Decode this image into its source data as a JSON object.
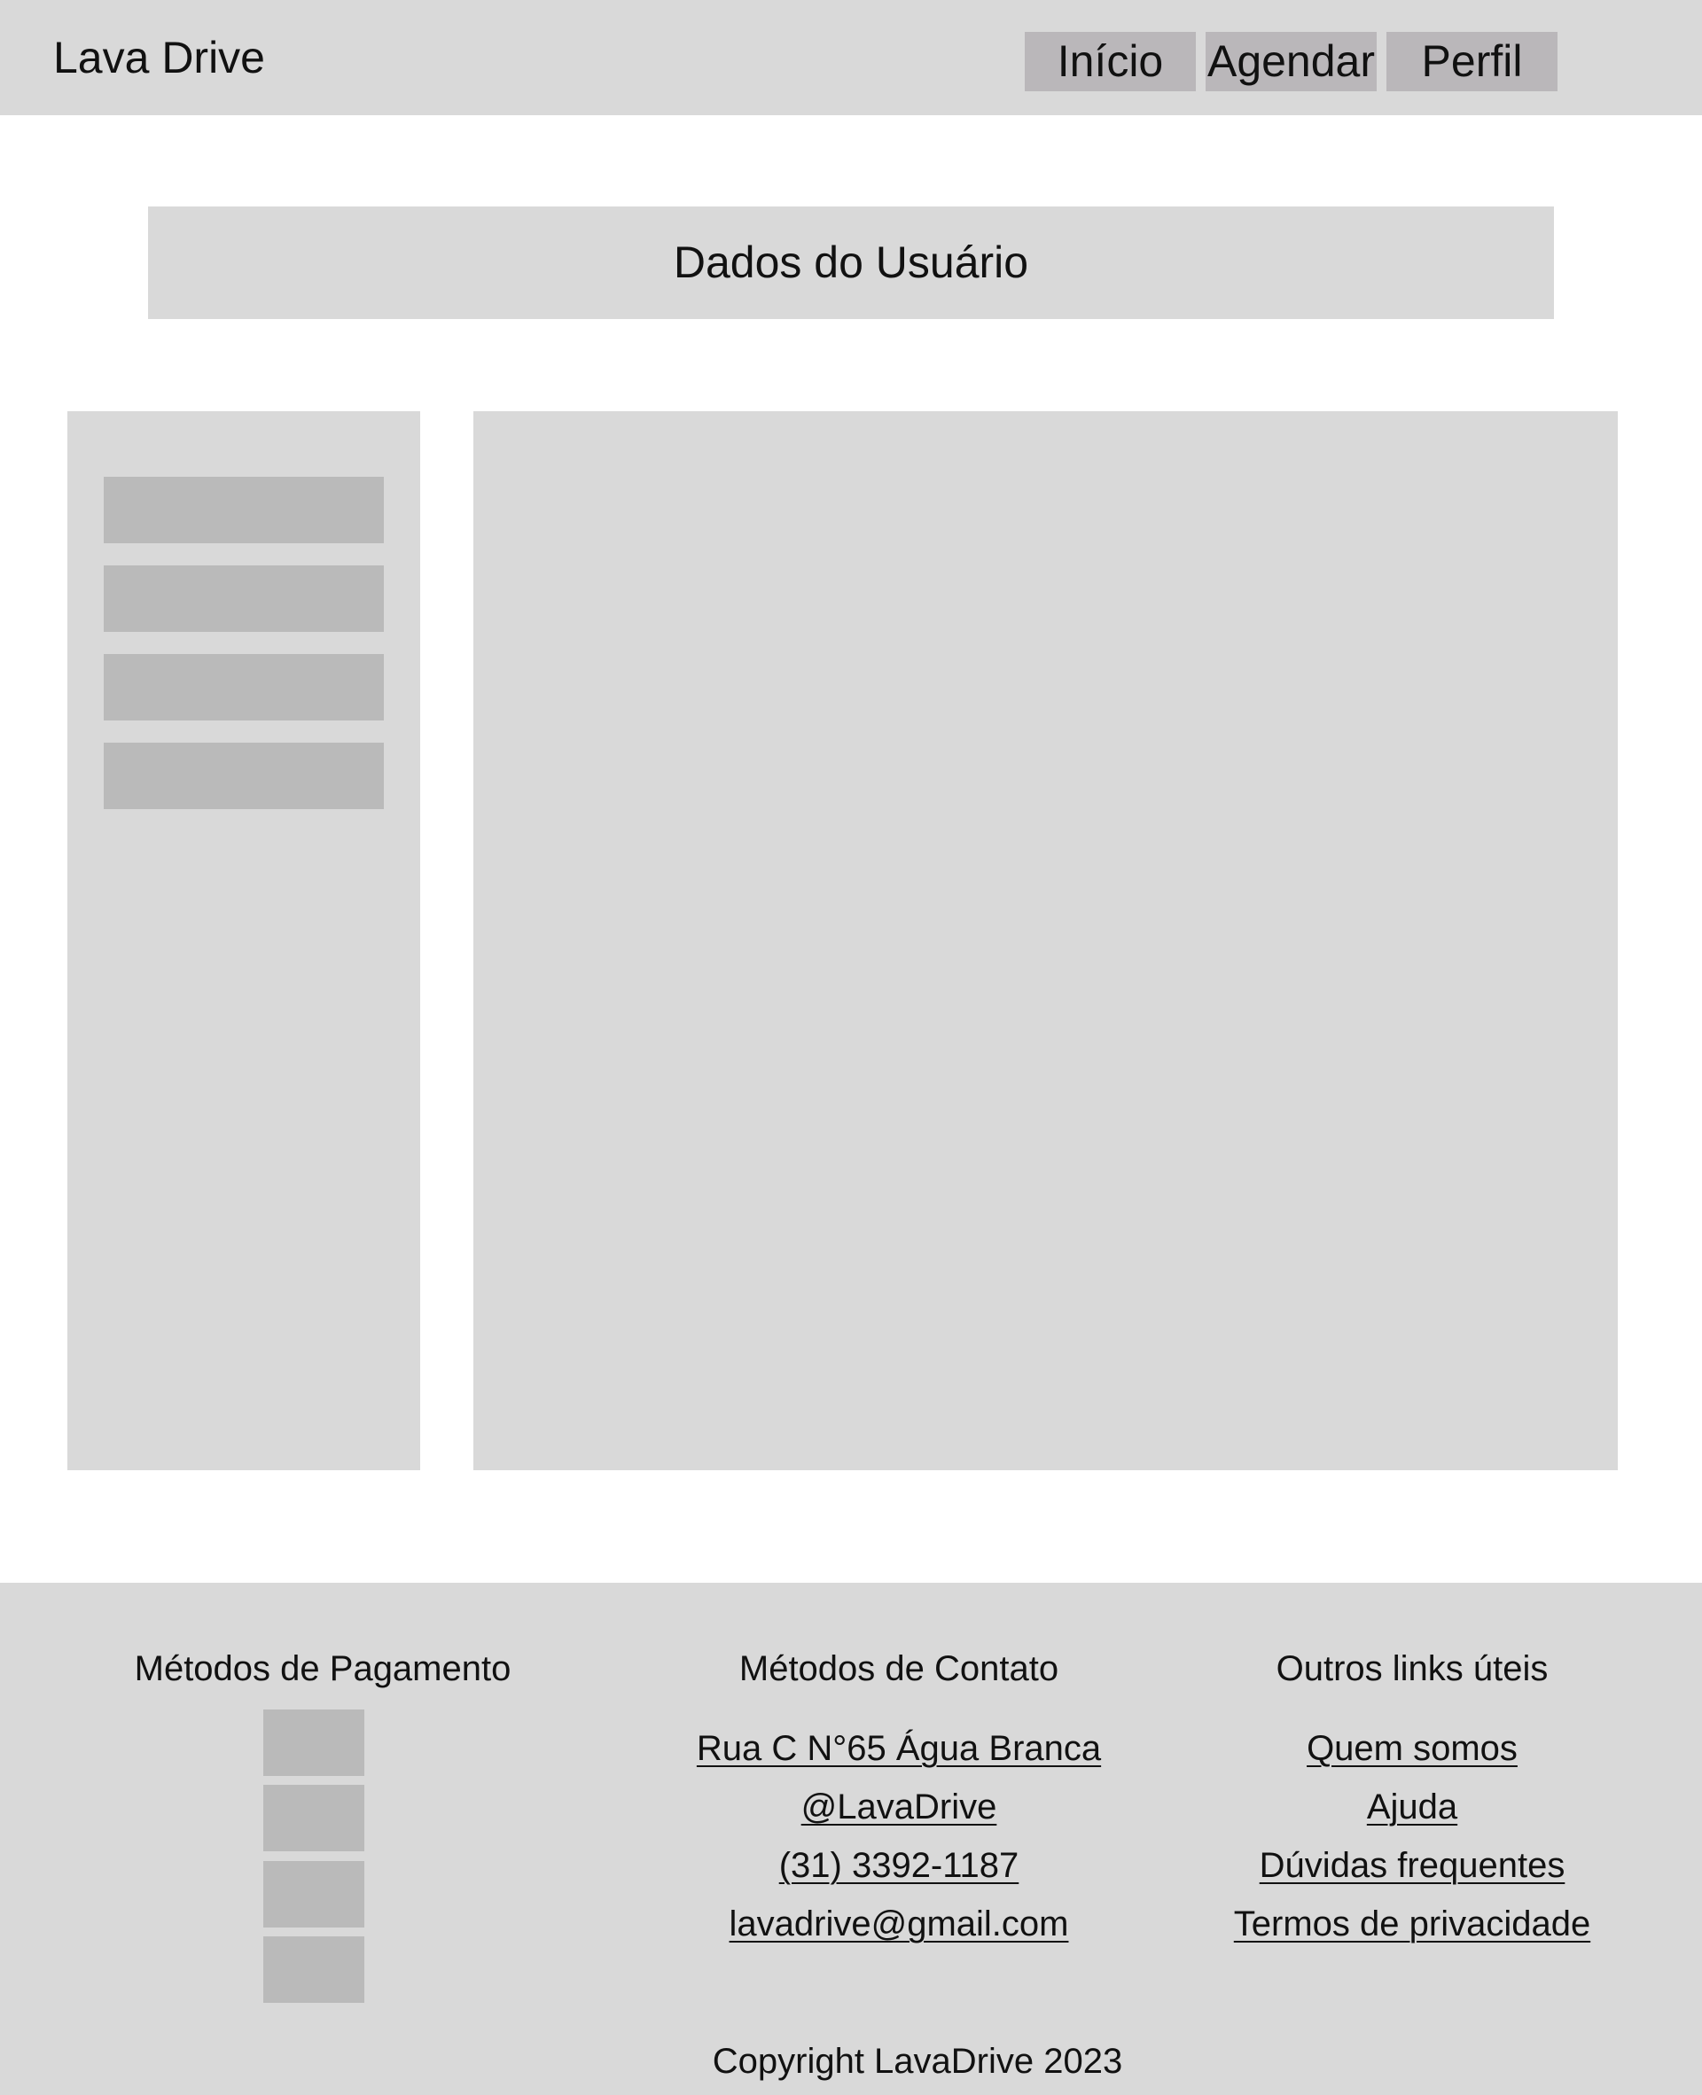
{
  "header": {
    "logo": "Lava Drive",
    "nav": [
      {
        "label": "Início"
      },
      {
        "label": "Agendar"
      },
      {
        "label": "Perfil"
      }
    ]
  },
  "main": {
    "title": "Dados do Usuário"
  },
  "footer": {
    "payment": {
      "title": "Métodos de Pagamento"
    },
    "contact": {
      "title": "Métodos de Contato",
      "items": [
        {
          "label": "Rua C N°65 Água Branca"
        },
        {
          "label": "@LavaDrive"
        },
        {
          "label": "(31) 3392-1187"
        },
        {
          "label": "lavadrive@gmail.com"
        }
      ]
    },
    "links": {
      "title": "Outros links úteis",
      "items": [
        {
          "label": "Quem somos"
        },
        {
          "label": "Ajuda"
        },
        {
          "label": "Dúvidas frequentes"
        },
        {
          "label": "Termos de privacidade"
        }
      ]
    },
    "copyright": "Copyright LavaDrive 2023"
  },
  "colors": {
    "header_bg": "#d9d9d9",
    "nav_button_bg": "#bab7ba",
    "panel_bg": "#d9d9d9",
    "placeholder_block": "#bababa",
    "page_bg": "#ffffff",
    "text": "#111111"
  }
}
